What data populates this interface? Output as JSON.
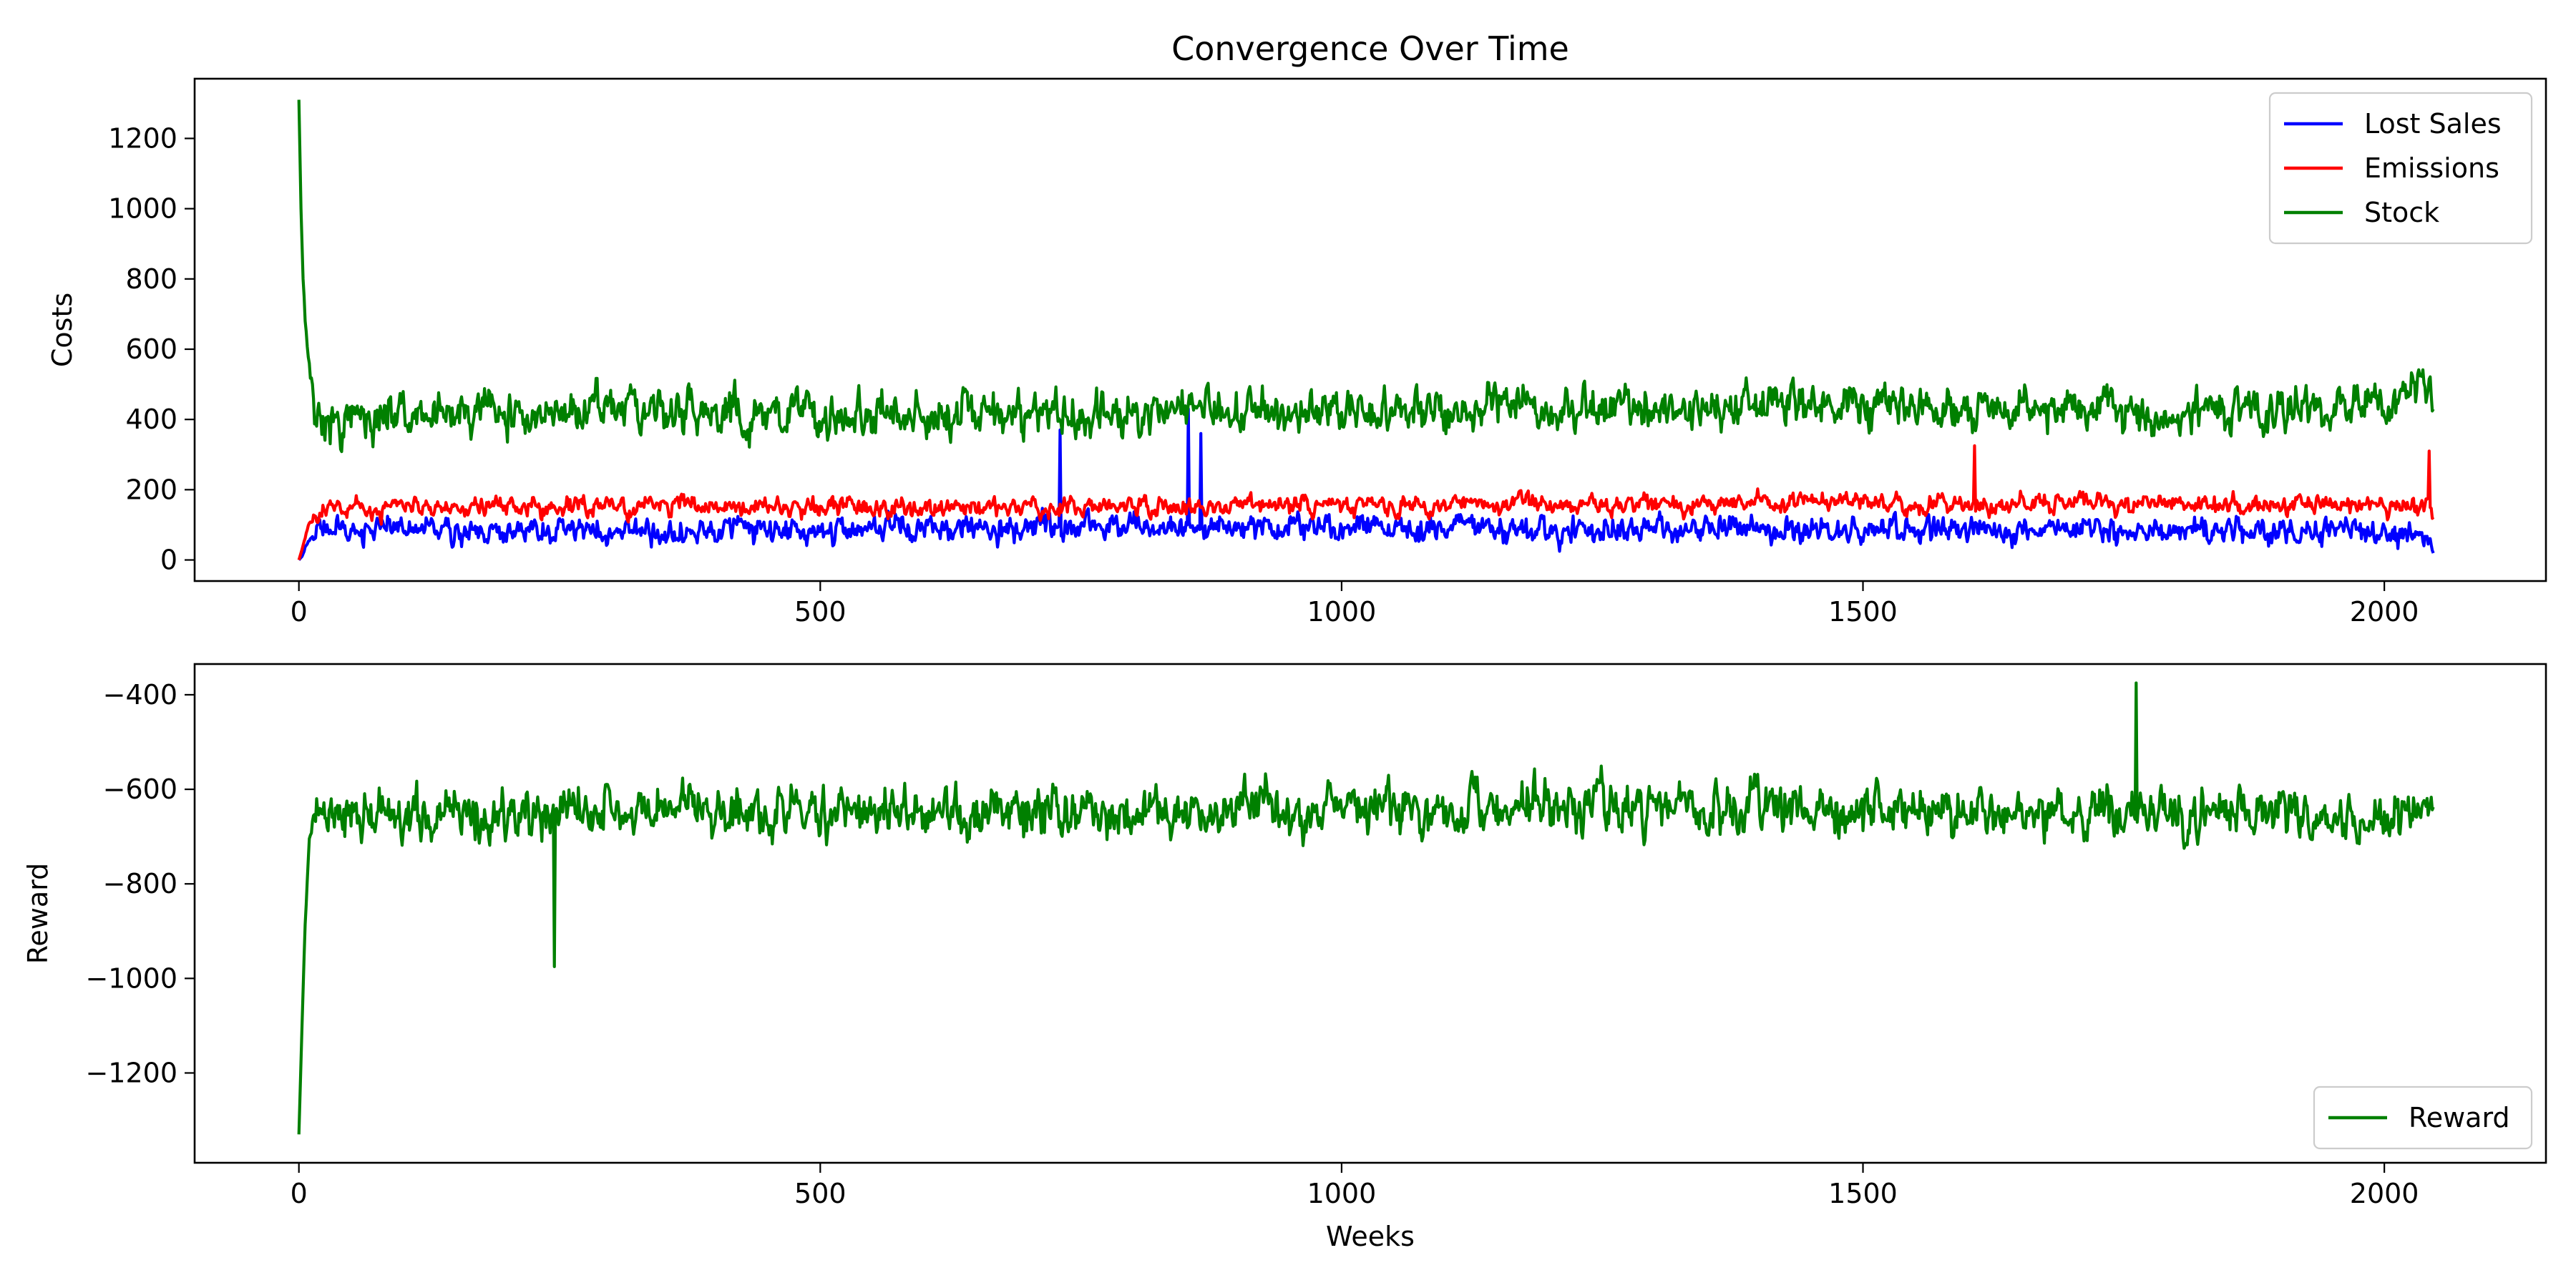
{
  "figure": {
    "title": "Convergence Over Time"
  },
  "chart_data": [
    {
      "type": "line",
      "title": "Convergence Over Time",
      "xlabel": "",
      "ylabel": "Costs",
      "xlim": [
        -100,
        2155
      ],
      "ylim": [
        -60,
        1370
      ],
      "x_ticks": [
        0,
        500,
        1000,
        1500,
        2000
      ],
      "x_tick_labels": [
        "0",
        "500",
        "1000",
        "1500",
        "2000"
      ],
      "y_ticks": [
        0,
        200,
        400,
        600,
        800,
        1000,
        1200
      ],
      "y_tick_labels": [
        "0",
        "200",
        "400",
        "600",
        "800",
        "1000",
        "1200"
      ],
      "grid": false,
      "legend_position": "top-right",
      "x_points": 2048,
      "series": [
        {
          "name": "Lost Sales",
          "color": "#0000ff",
          "anchors": [
            [
              0,
              0
            ],
            [
              3,
              10
            ],
            [
              10,
              60
            ],
            [
              20,
              90
            ],
            [
              100,
              85
            ],
            [
              300,
              80
            ],
            [
              500,
              85
            ],
            [
              700,
              95
            ],
            [
              850,
              90
            ],
            [
              1000,
              90
            ],
            [
              1200,
              85
            ],
            [
              1500,
              85
            ],
            [
              1800,
              85
            ],
            [
              2000,
              80
            ],
            [
              2040,
              60
            ],
            [
              2047,
              5
            ]
          ],
          "amplitude": 65,
          "min": 0,
          "max": 290,
          "spikes": [
            [
              730,
              370
            ],
            [
              853,
              430
            ],
            [
              865,
              360
            ]
          ]
        },
        {
          "name": "Emissions",
          "color": "#ff0000",
          "anchors": [
            [
              0,
              0
            ],
            [
              3,
              30
            ],
            [
              10,
              110
            ],
            [
              30,
              150
            ],
            [
              200,
              155
            ],
            [
              600,
              150
            ],
            [
              1000,
              155
            ],
            [
              1500,
              160
            ],
            [
              2000,
              155
            ],
            [
              2047,
              140
            ]
          ],
          "amplitude": 48,
          "min": 10,
          "max": 330,
          "spikes": [
            [
              1607,
              325
            ],
            [
              2043,
              310
            ]
          ]
        },
        {
          "name": "Stock",
          "color": "#008000",
          "anchors": [
            [
              0,
              1310
            ],
            [
              2,
              1000
            ],
            [
              4,
              800
            ],
            [
              8,
              600
            ],
            [
              15,
              400
            ],
            [
              25,
              380
            ],
            [
              100,
              420
            ],
            [
              300,
              420
            ],
            [
              500,
              410
            ],
            [
              700,
              420
            ],
            [
              900,
              430
            ],
            [
              1000,
              420
            ],
            [
              1200,
              430
            ],
            [
              1400,
              440
            ],
            [
              1600,
              440
            ],
            [
              1800,
              420
            ],
            [
              2000,
              440
            ],
            [
              2047,
              520
            ]
          ],
          "amplitude": 110,
          "min": 150,
          "max": 680,
          "spikes": []
        }
      ]
    },
    {
      "type": "line",
      "title": "",
      "xlabel": "Weeks",
      "ylabel": "Reward",
      "xlim": [
        -100,
        2155
      ],
      "ylim": [
        -1390,
        -335
      ],
      "x_ticks": [
        0,
        500,
        1000,
        1500,
        2000
      ],
      "x_tick_labels": [
        "0",
        "500",
        "1000",
        "1500",
        "2000"
      ],
      "y_ticks": [
        -400,
        -600,
        -800,
        -1000,
        -1200
      ],
      "y_tick_labels": [
        "−400",
        "−600",
        "−800",
        "−1000",
        "−1200"
      ],
      "grid": false,
      "legend_position": "bottom-right",
      "x_points": 2048,
      "series": [
        {
          "name": "Reward",
          "color": "#008000",
          "anchors": [
            [
              0,
              -1330
            ],
            [
              3,
              -1100
            ],
            [
              6,
              -880
            ],
            [
              10,
              -700
            ],
            [
              20,
              -640
            ],
            [
              100,
              -660
            ],
            [
              300,
              -650
            ],
            [
              500,
              -650
            ],
            [
              800,
              -650
            ],
            [
              1000,
              -645
            ],
            [
              1200,
              -640
            ],
            [
              1500,
              -650
            ],
            [
              1800,
              -650
            ],
            [
              2000,
              -660
            ],
            [
              2047,
              -640
            ]
          ],
          "amplitude": 95,
          "min": -960,
          "max": -380,
          "spikes": [
            [
              245,
              -975
            ],
            [
              1762,
              -375
            ]
          ]
        }
      ]
    }
  ]
}
